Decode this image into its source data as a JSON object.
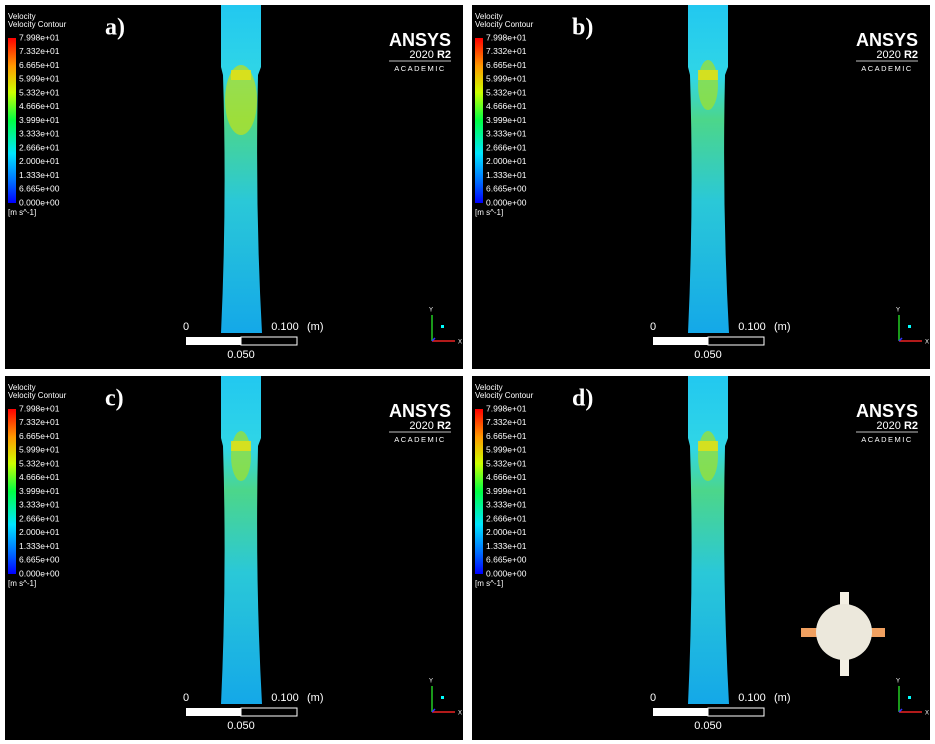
{
  "panels": [
    {
      "label": "a)",
      "legend": {
        "title": "Velocity",
        "subtitle": "Velocity Contour",
        "ticks": [
          "7.998e+01",
          "7.332e+01",
          "6.665e+01",
          "5.999e+01",
          "5.332e+01",
          "4.666e+01",
          "3.999e+01",
          "3.333e+01",
          "2.666e+01",
          "2.000e+01",
          "1.333e+01",
          "6.665e+00",
          "0.000e+00"
        ],
        "unit": "[m s^-1]"
      },
      "logo": {
        "brand": "ANSYS",
        "version": "2020",
        "release": "R2",
        "edition": "ACADEMIC"
      },
      "scale": {
        "start": "0",
        "end": "0.100",
        "unit": "(m)",
        "mid": "0.050"
      },
      "axes": {
        "y": "Y",
        "x": "X"
      }
    },
    {
      "label": "b)",
      "legend": {
        "title": "Velocity",
        "subtitle": "Velocity Contour",
        "ticks": [
          "7.998e+01",
          "7.332e+01",
          "6.665e+01",
          "5.999e+01",
          "5.332e+01",
          "4.666e+01",
          "3.999e+01",
          "3.333e+01",
          "2.666e+01",
          "2.000e+01",
          "1.333e+01",
          "6.665e+00",
          "0.000e+00"
        ],
        "unit": "[m s^-1]"
      },
      "logo": {
        "brand": "ANSYS",
        "version": "2020",
        "release": "R2",
        "edition": "ACADEMIC"
      },
      "scale": {
        "start": "0",
        "end": "0.100",
        "unit": "(m)",
        "mid": "0.050"
      },
      "axes": {
        "y": "Y",
        "x": "X"
      }
    },
    {
      "label": "c)",
      "legend": {
        "title": "Velocity",
        "subtitle": "Velocity Contour",
        "ticks": [
          "7.998e+01",
          "7.332e+01",
          "6.665e+01",
          "5.999e+01",
          "5.332e+01",
          "4.666e+01",
          "3.999e+01",
          "3.333e+01",
          "2.666e+01",
          "2.000e+01",
          "1.333e+01",
          "6.665e+00",
          "0.000e+00"
        ],
        "unit": "[m s^-1]"
      },
      "logo": {
        "brand": "ANSYS",
        "version": "2020",
        "release": "R2",
        "edition": "ACADEMIC"
      },
      "scale": {
        "start": "0",
        "end": "0.100",
        "unit": "(m)",
        "mid": "0.050"
      },
      "axes": {
        "y": "Y",
        "x": "X"
      }
    },
    {
      "label": "d)",
      "legend": {
        "title": "Velocity",
        "subtitle": "Velocity Contour",
        "ticks": [
          "7.998e+01",
          "7.332e+01",
          "6.665e+01",
          "5.999e+01",
          "5.332e+01",
          "4.666e+01",
          "3.999e+01",
          "3.333e+01",
          "2.666e+01",
          "2.000e+01",
          "1.333e+01",
          "6.665e+00",
          "0.000e+00"
        ],
        "unit": "[m s^-1]"
      },
      "logo": {
        "brand": "ANSYS",
        "version": "2020",
        "release": "R2",
        "edition": "ACADEMIC"
      },
      "scale": {
        "start": "0",
        "end": "0.100",
        "unit": "(m)",
        "mid": "0.050"
      },
      "axes": {
        "y": "Y",
        "x": "X"
      }
    }
  ]
}
